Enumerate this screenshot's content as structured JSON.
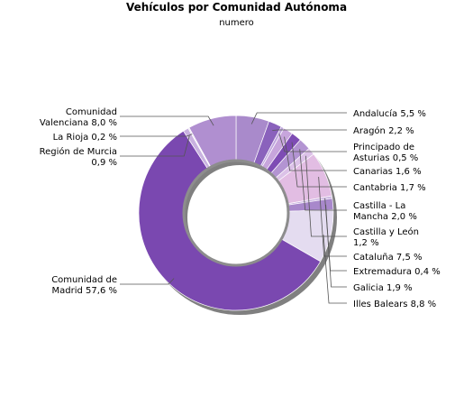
{
  "chart_data": {
    "type": "pie",
    "style": "donut",
    "title": "Vehículos por Comunidad Autónoma",
    "subtitle": "numero",
    "slices": [
      {
        "name": "Andalucía",
        "value": 5.5,
        "label": [
          "Andalucía 5,5 %"
        ],
        "color": "#a98acb"
      },
      {
        "name": "Aragón",
        "value": 2.2,
        "label": [
          "Aragón 2,2 %"
        ],
        "color": "#8a62bc"
      },
      {
        "name": "Principado de Asturias",
        "value": 0.5,
        "label": [
          "Principado de",
          "Asturias 0,5 %"
        ],
        "color": "#bfa6dd"
      },
      {
        "name": "Canarias",
        "value": 1.6,
        "label": [
          "Canarias 1,6 %"
        ],
        "color": "#c7a5dc"
      },
      {
        "name": "Cantabria",
        "value": 1.7,
        "label": [
          "Cantabria 1,7 %"
        ],
        "color": "#7e4cb4"
      },
      {
        "name": "Castilla - La Mancha",
        "value": 2.0,
        "label": [
          "Castilla - La",
          "Mancha 2,0 %"
        ],
        "color": "#b394d2"
      },
      {
        "name": "Castilla y León",
        "value": 1.2,
        "label": [
          "Castilla y León",
          "1,2 %"
        ],
        "color": "#dcc2e8"
      },
      {
        "name": "Cataluña",
        "value": 7.5,
        "label": [
          "Cataluña 7,5 %"
        ],
        "color": "#e2bde3"
      },
      {
        "name": "Extremadura",
        "value": 0.4,
        "label": [
          "Extremadura 0,4 %"
        ],
        "color": "#c9b2e0"
      },
      {
        "name": "Galicia",
        "value": 1.9,
        "label": [
          "Galicia 1,9 %"
        ],
        "color": "#a888cb"
      },
      {
        "name": "Illes Balears",
        "value": 8.8,
        "label": [
          "Illes Balears 8,8 %"
        ],
        "color": "#e4dcf0"
      },
      {
        "name": "Comunidad de Madrid",
        "value": 57.6,
        "label": [
          "Comunidad de",
          "Madrid 57,6 %"
        ],
        "color": "#7a48b0"
      },
      {
        "name": "Región de Murcia",
        "value": 0.9,
        "label": [
          "Región de Murcia",
          "0,9 %"
        ],
        "color": "#c9b2e0"
      },
      {
        "name": "La Rioja",
        "value": 0.2,
        "label": [
          "La Rioja 0,2 %"
        ],
        "color": "#eae2f4"
      },
      {
        "name": "Comunidad Valenciana",
        "value": 8.0,
        "label": [
          "Comunidad",
          "Valenciana 8,0 %"
        ],
        "color": "#b08fd0"
      }
    ],
    "legend": "none"
  }
}
